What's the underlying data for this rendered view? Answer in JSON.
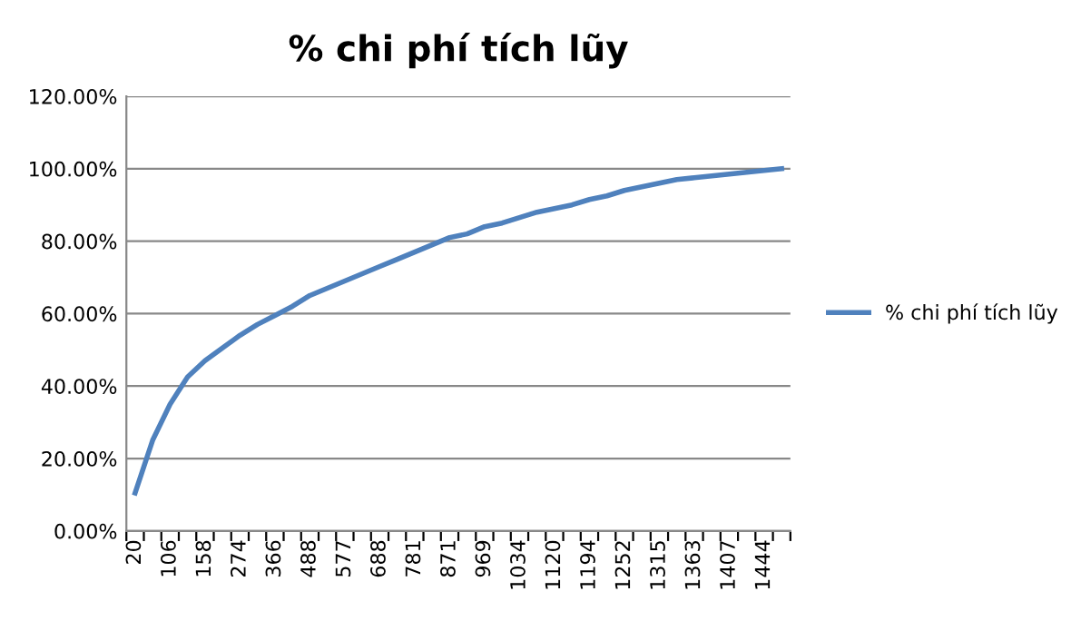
{
  "chart_data": {
    "type": "line",
    "title": "% chi phí tích lũy",
    "categories": [
      "20",
      null,
      "106",
      null,
      "158",
      null,
      "274",
      null,
      "366",
      null,
      "488",
      null,
      "577",
      null,
      "688",
      null,
      "781",
      null,
      "871",
      null,
      "969",
      null,
      "1034",
      null,
      "1120",
      null,
      "1194",
      null,
      "1252",
      null,
      "1315",
      null,
      "1363",
      null,
      "1407",
      null,
      "1444",
      null
    ],
    "series": [
      {
        "name": "% chi phí tích lũy",
        "color": "#4f81bd",
        "values": [
          10.5,
          25,
          35,
          42.5,
          47,
          50.5,
          54,
          57,
          59.5,
          62,
          65,
          67,
          69,
          71,
          73,
          75,
          77,
          79,
          81,
          82,
          84,
          85,
          86.5,
          88,
          89,
          90,
          91.5,
          92.5,
          94,
          95,
          96,
          97,
          97.5,
          98,
          98.5,
          99,
          99.5,
          100
        ]
      }
    ],
    "ylim": [
      0,
      120
    ],
    "yticks": [
      {
        "value": 0,
        "label": "0.00%"
      },
      {
        "value": 20,
        "label": "20.00%"
      },
      {
        "value": 40,
        "label": "40.00%"
      },
      {
        "value": 60,
        "label": "60.00%"
      },
      {
        "value": 80,
        "label": "80.00%"
      },
      {
        "value": 100,
        "label": "100.00%"
      },
      {
        "value": 120,
        "label": "120.00%"
      }
    ],
    "grid": "y",
    "legend": "right",
    "marker": "none",
    "line_style": "solid"
  }
}
